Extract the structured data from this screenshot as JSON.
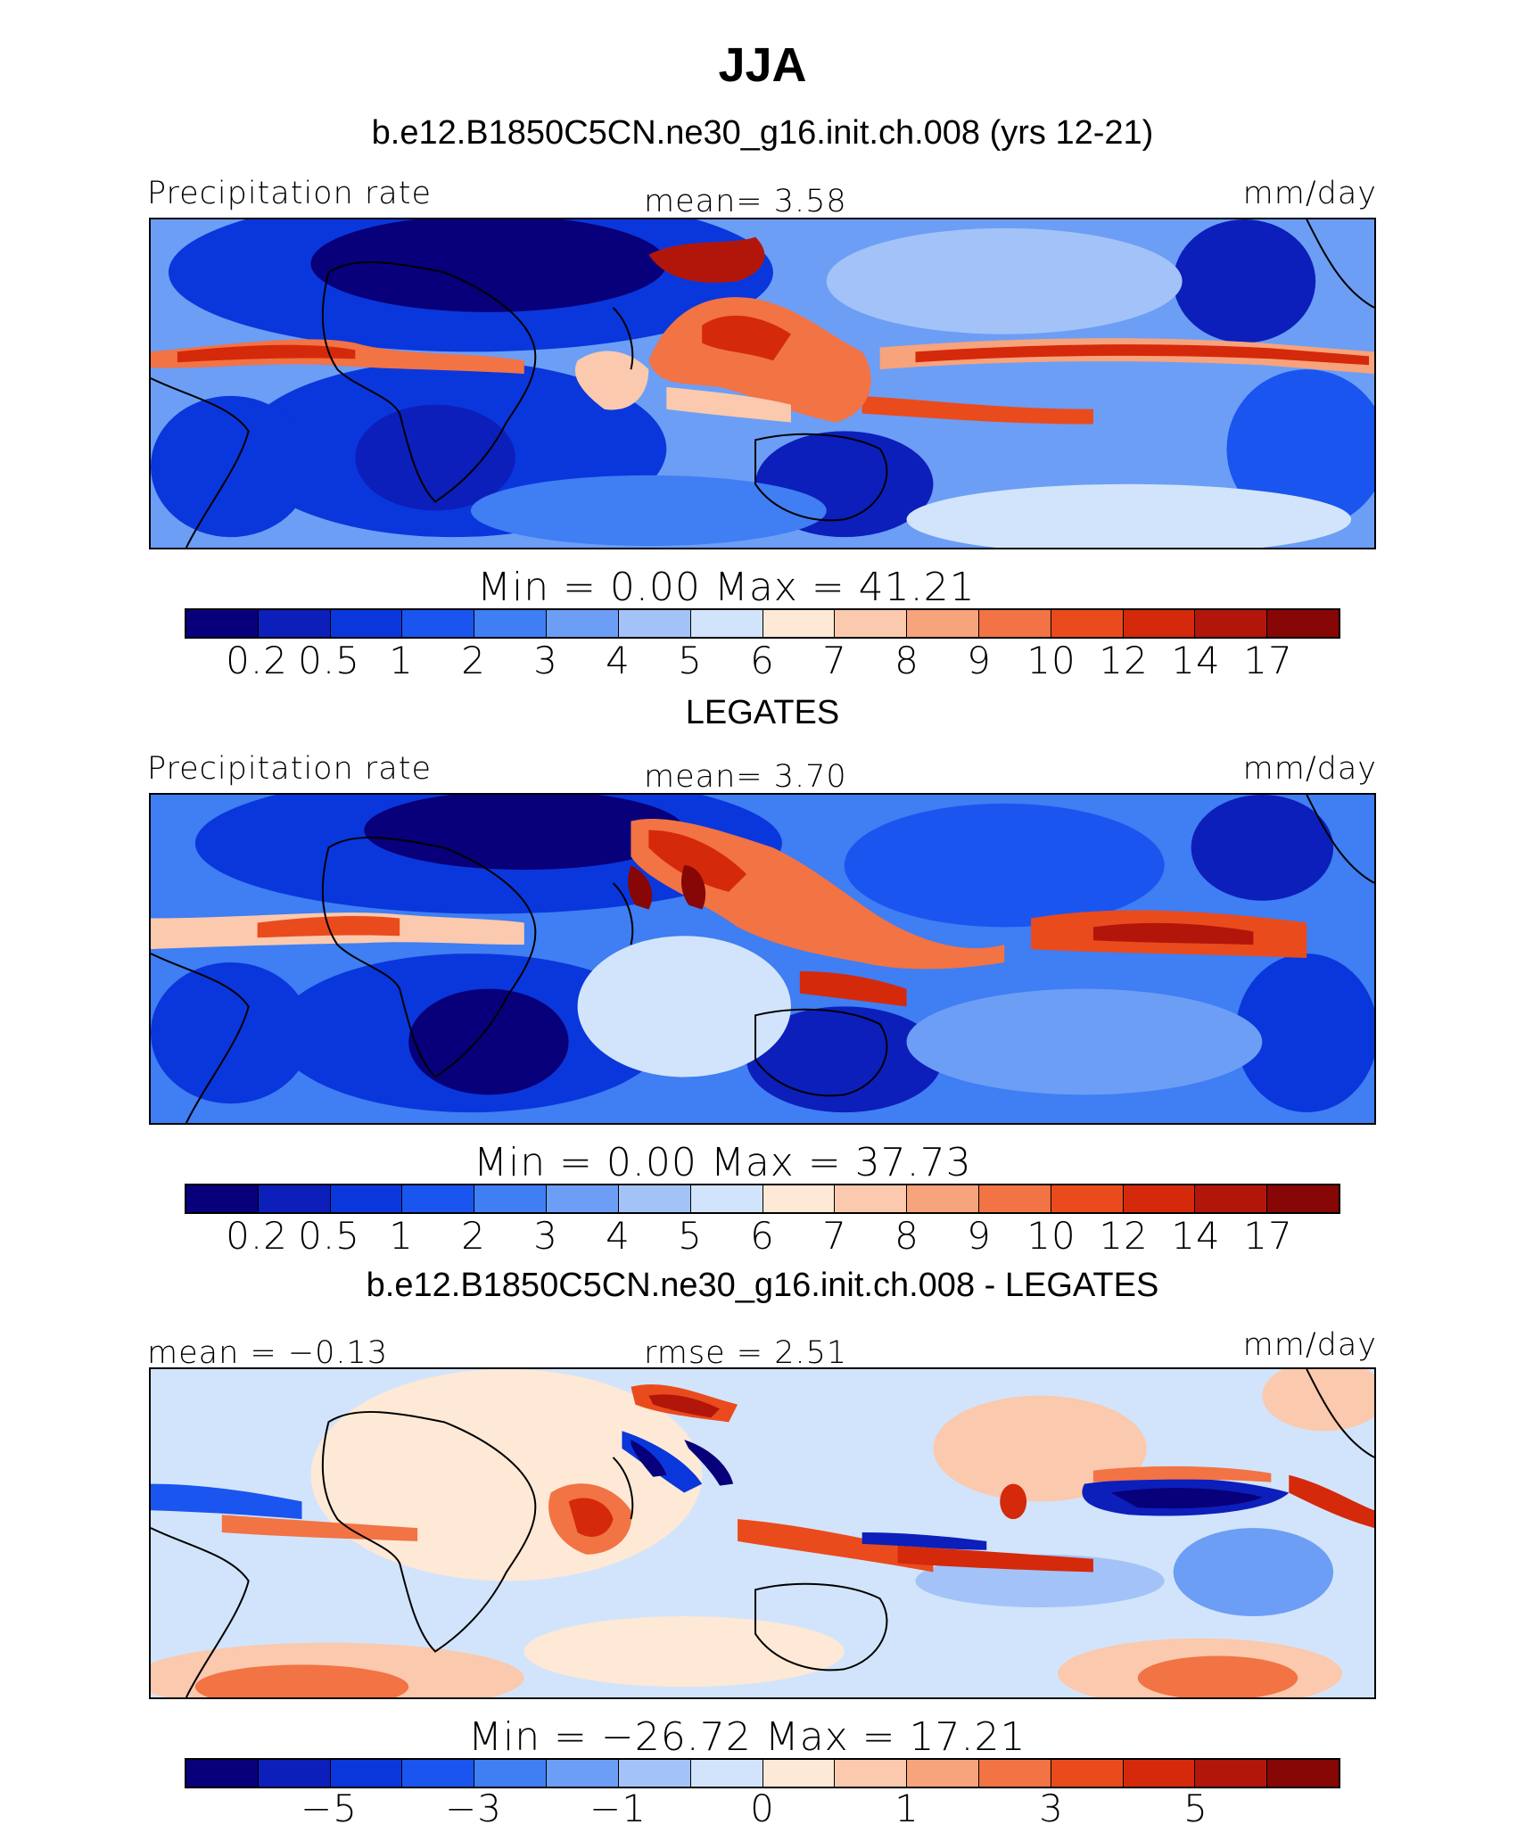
{
  "title": "JJA",
  "panels": [
    {
      "case_title": "b.e12.B1850C5CN.ne30_g16.init.ch.008 (yrs 12-21)",
      "left_label": "Precipitation rate",
      "center_label": "mean=    3.58",
      "right_label": "mm/day",
      "minmax": "Min  =      0.00  Max  =    41.21",
      "tick_labels": [
        "0.2",
        "0.5",
        "1",
        "2",
        "3",
        "4",
        "5",
        "6",
        "7",
        "8",
        "9",
        "10",
        "12",
        "14",
        "17"
      ]
    },
    {
      "case_title": "LEGATES",
      "left_label": "Precipitation rate",
      "center_label": "mean=    3.70",
      "right_label": "mm/day",
      "minmax": "Min  =      0.00  Max  =    37.73",
      "tick_labels": [
        "0.2",
        "0.5",
        "1",
        "2",
        "3",
        "4",
        "5",
        "6",
        "7",
        "8",
        "9",
        "10",
        "12",
        "14",
        "17"
      ]
    },
    {
      "case_title": "b.e12.B1850C5CN.ne30_g16.init.ch.008 - LEGATES",
      "left_label": "mean  =   −0.13",
      "center_label": "rmse  =     2.51",
      "right_label": "mm/day",
      "minmax": "Min  =  −26.72  Max  =    17.21",
      "tick_labels": [
        "−5",
        "−3",
        "−1",
        "0",
        "1",
        "3",
        "5"
      ]
    }
  ],
  "chart_data": [
    {
      "type": "heatmap",
      "title": "b.e12.B1850C5CN.ne30_g16.init.ch.008 (yrs 12-21)",
      "variable": "Precipitation rate",
      "units": "mm/day",
      "mean": 3.58,
      "min": 0.0,
      "max": 41.21,
      "contour_levels": [
        0.2,
        0.5,
        1,
        2,
        3,
        4,
        5,
        6,
        7,
        8,
        9,
        10,
        12,
        14,
        17
      ]
    },
    {
      "type": "heatmap",
      "title": "LEGATES",
      "variable": "Precipitation rate",
      "units": "mm/day",
      "mean": 3.7,
      "min": 0.0,
      "max": 37.73,
      "contour_levels": [
        0.2,
        0.5,
        1,
        2,
        3,
        4,
        5,
        6,
        7,
        8,
        9,
        10,
        12,
        14,
        17
      ]
    },
    {
      "type": "heatmap",
      "title": "b.e12.B1850C5CN.ne30_g16.init.ch.008 - LEGATES",
      "units": "mm/day",
      "mean": -0.13,
      "rmse": 2.51,
      "min": -26.72,
      "max": 17.21,
      "labeled_levels": [
        -5,
        -3,
        -1,
        0,
        1,
        3,
        5
      ]
    }
  ],
  "colorbar_colors": [
    "#08007a",
    "#0c1fbb",
    "#0a37dc",
    "#1a55f0",
    "#3f7ef3",
    "#6c9ef5",
    "#a3c3f8",
    "#d2e4fb",
    "#fde9d6",
    "#fbc9ad",
    "#f7a37c",
    "#f27344",
    "#ea4b1d",
    "#d5290b",
    "#b2160a",
    "#860705"
  ]
}
